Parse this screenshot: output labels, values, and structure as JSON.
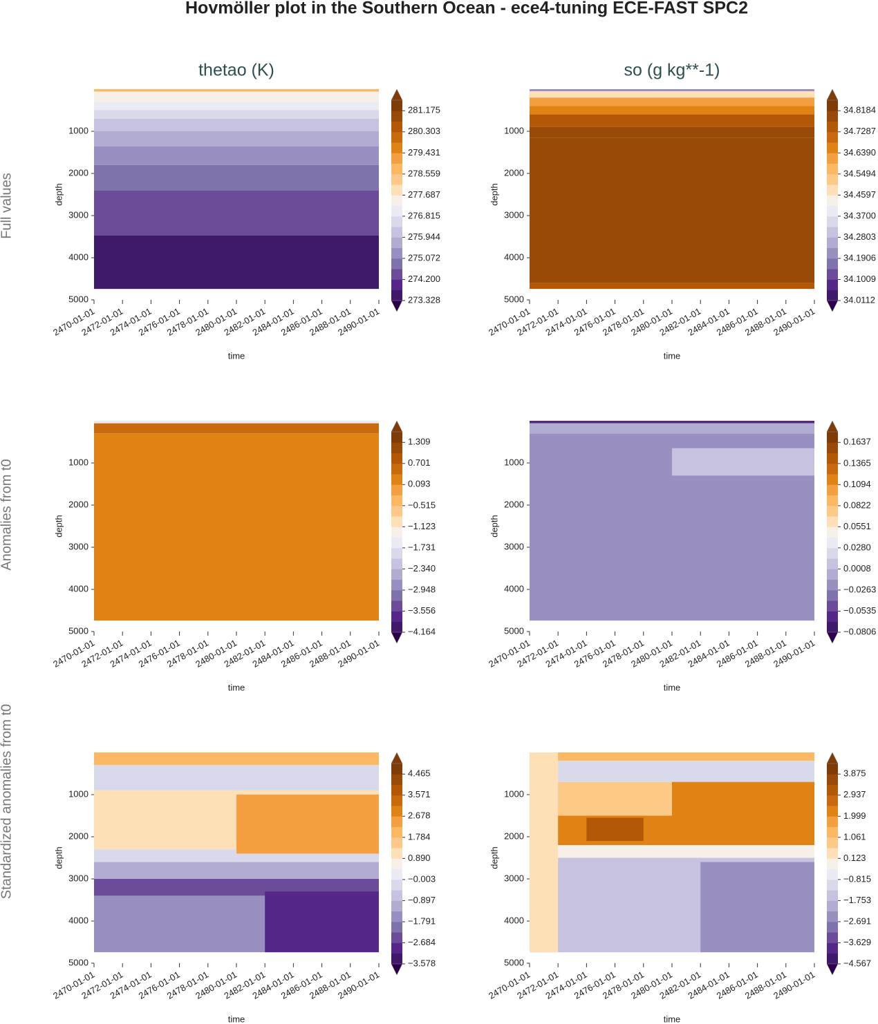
{
  "title": "Hovmöller plot in the Southern Ocean - ece4-tuning ECE-FAST SPC2",
  "row_labels": [
    "Full values",
    "Anomalies from t0",
    "Standardized anomalies from t0"
  ],
  "column_titles": [
    "thetao (K)",
    "so (g kg**-1)"
  ],
  "colormap": [
    "#2d004b",
    "#3f1a6b",
    "#542788",
    "#6a4c98",
    "#8073ac",
    "#998fc0",
    "#b2abd2",
    "#c6c2df",
    "#d8daeb",
    "#ebebf3",
    "#f7f0e8",
    "#fee0b6",
    "#fdc987",
    "#fdb863",
    "#f5a040",
    "#e08214",
    "#c86a0e",
    "#b35806",
    "#9a4a07",
    "#7f3b08"
  ],
  "chart_data": [
    {
      "type": "contour",
      "xlabel": "time",
      "ylabel": "depth",
      "xlim": [
        "2470-01-01",
        "2490-01-01"
      ],
      "xticks": [
        "2470-01-01",
        "2472-01-01",
        "2474-01-01",
        "2476-01-01",
        "2478-01-01",
        "2480-01-01",
        "2482-01-01",
        "2484-01-01",
        "2486-01-01",
        "2488-01-01",
        "2490-01-01"
      ],
      "ylim": [
        5000,
        0
      ],
      "yticks": [
        1000,
        2000,
        3000,
        4000,
        5000
      ],
      "cbar_ticks": [
        273.328,
        {
          "value": 274.2,
          "label": "274.200"
        },
        275.072,
        275.944,
        276.815,
        277.687,
        278.559,
        279.431,
        280.303,
        281.175
      ],
      "bands": [
        {
          "depth": [
            0,
            60
          ],
          "value": 278.8
        },
        {
          "depth": [
            60,
            300
          ],
          "value": 277.5
        },
        {
          "depth": [
            300,
            500
          ],
          "value": 277.0
        },
        {
          "depth": [
            500,
            700
          ],
          "value": 276.5
        },
        {
          "depth": [
            700,
            1000
          ],
          "value": 276.1
        },
        {
          "depth": [
            1000,
            1360
          ],
          "value": 275.7
        },
        {
          "depth": [
            1360,
            1800
          ],
          "value": 275.3
        },
        {
          "depth": [
            1800,
            2410
          ],
          "value": 274.8
        },
        {
          "depth": [
            2410,
            3475
          ],
          "value": 274.3
        },
        {
          "depth": [
            3475,
            4740
          ],
          "value": 273.5
        }
      ]
    },
    {
      "type": "contour",
      "xlabel": "time",
      "ylabel": "depth",
      "xlim": [
        "2470-01-01",
        "2490-01-01"
      ],
      "xticks": [
        "2470-01-01",
        "2472-01-01",
        "2474-01-01",
        "2476-01-01",
        "2478-01-01",
        "2480-01-01",
        "2482-01-01",
        "2484-01-01",
        "2486-01-01",
        "2488-01-01",
        "2490-01-01"
      ],
      "ylim": [
        5000,
        0
      ],
      "yticks": [
        1000,
        2000,
        3000,
        4000,
        5000
      ],
      "cbar_ticks": [
        34.0112,
        34.1009,
        34.1906,
        34.2803,
        {
          "value": 34.37,
          "label": "34.3700"
        },
        34.4597,
        34.5494,
        {
          "value": 34.639,
          "label": "34.6390"
        },
        34.7287,
        34.8184
      ],
      "bands": [
        {
          "depth": [
            0,
            50
          ],
          "value": 34.2
        },
        {
          "depth": [
            50,
            200
          ],
          "value": 34.48
        },
        {
          "depth": [
            200,
            400
          ],
          "value": 34.6
        },
        {
          "depth": [
            400,
            600
          ],
          "value": 34.68
        },
        {
          "depth": [
            600,
            900
          ],
          "value": 34.74
        },
        {
          "depth": [
            900,
            1150
          ],
          "value": 34.78
        },
        {
          "depth": [
            1150,
            4600
          ],
          "value": 34.81
        },
        {
          "depth": [
            4600,
            4740
          ],
          "value": 34.76
        }
      ]
    },
    {
      "type": "contour",
      "xlabel": "time",
      "ylabel": "depth",
      "xlim": [
        "2470-01-01",
        "2490-01-01"
      ],
      "xticks": [
        "2470-01-01",
        "2472-01-01",
        "2474-01-01",
        "2476-01-01",
        "2478-01-01",
        "2480-01-01",
        "2482-01-01",
        "2484-01-01",
        "2486-01-01",
        "2488-01-01",
        "2490-01-01"
      ],
      "ylim": [
        5000,
        0
      ],
      "yticks": [
        1000,
        2000,
        3000,
        4000,
        5000
      ],
      "cbar_ticks": [
        {
          "value": -4.164,
          "label": "−4.164"
        },
        {
          "value": -3.556,
          "label": "−3.556"
        },
        {
          "value": -2.948,
          "label": "−2.948"
        },
        {
          "value": -2.34,
          "label": "−2.340"
        },
        {
          "value": -1.731,
          "label": "−1.731"
        },
        {
          "value": -1.123,
          "label": "−1.123"
        },
        {
          "value": -0.515,
          "label": "−0.515"
        },
        0.093,
        0.701,
        1.309
      ],
      "bands": [
        {
          "depth": [
            0,
            60
          ],
          "value": -1.5
        },
        {
          "depth": [
            60,
            300
          ],
          "value": 0.5
        },
        {
          "depth": [
            300,
            4740
          ],
          "value": 0.3
        }
      ]
    },
    {
      "type": "contour",
      "xlabel": "time",
      "ylabel": "depth",
      "xlim": [
        "2470-01-01",
        "2490-01-01"
      ],
      "xticks": [
        "2470-01-01",
        "2472-01-01",
        "2474-01-01",
        "2476-01-01",
        "2478-01-01",
        "2480-01-01",
        "2482-01-01",
        "2484-01-01",
        "2486-01-01",
        "2488-01-01",
        "2490-01-01"
      ],
      "ylim": [
        5000,
        0
      ],
      "yticks": [
        1000,
        2000,
        3000,
        4000,
        5000
      ],
      "cbar_ticks": [
        {
          "value": -0.0806,
          "label": "−0.0806"
        },
        {
          "value": -0.0535,
          "label": "−0.0535"
        },
        {
          "value": -0.0263,
          "label": "−0.0263"
        },
        0.0008,
        {
          "value": 0.028,
          "label": "0.0280"
        },
        0.0551,
        0.0822,
        0.1094,
        0.1365,
        0.1637
      ],
      "bands": [
        {
          "depth": [
            0,
            60
          ],
          "value": -0.06
        },
        {
          "depth": [
            60,
            300
          ],
          "value": -0.005
        },
        {
          "depth": [
            300,
            4740
          ],
          "value": -0.02
        },
        {
          "depth": [
            650,
            1300
          ],
          "time": [
            "2480-01-01",
            "2490-01-01"
          ],
          "value": 0.01
        }
      ]
    },
    {
      "type": "contour",
      "xlabel": "time",
      "ylabel": "depth",
      "xlim": [
        "2470-01-01",
        "2490-01-01"
      ],
      "xticks": [
        "2470-01-01",
        "2472-01-01",
        "2474-01-01",
        "2476-01-01",
        "2478-01-01",
        "2480-01-01",
        "2482-01-01",
        "2484-01-01",
        "2486-01-01",
        "2488-01-01",
        "2490-01-01"
      ],
      "ylim": [
        5000,
        0
      ],
      "yticks": [
        1000,
        2000,
        3000,
        4000,
        5000
      ],
      "cbar_ticks": [
        {
          "value": -3.578,
          "label": "−3.578"
        },
        {
          "value": -2.684,
          "label": "−2.684"
        },
        {
          "value": -1.791,
          "label": "−1.791"
        },
        {
          "value": -0.897,
          "label": "−0.897"
        },
        {
          "value": -0.003,
          "label": "−0.003"
        },
        {
          "value": 0.89,
          "label": "0.890"
        },
        1.784,
        2.678,
        3.571,
        4.465
      ],
      "bands": [
        {
          "depth": [
            0,
            300
          ],
          "value": 2.0
        },
        {
          "depth": [
            300,
            900
          ],
          "value": -0.4
        },
        {
          "depth": [
            900,
            2300
          ],
          "value": 1.0
        },
        {
          "depth": [
            2300,
            2600
          ],
          "value": -0.2
        },
        {
          "depth": [
            2600,
            3000
          ],
          "value": -1.2
        },
        {
          "depth": [
            3000,
            3400
          ],
          "value": -2.5
        },
        {
          "depth": [
            3400,
            4740
          ],
          "value": -1.4
        },
        {
          "depth": [
            1000,
            2400
          ],
          "time": [
            "2480-01-01",
            "2490-01-01"
          ],
          "value": 2.4
        },
        {
          "depth": [
            3300,
            4740
          ],
          "time": [
            "2482-01-01",
            "2490-01-01"
          ],
          "value": -2.8
        }
      ]
    },
    {
      "type": "contour",
      "xlabel": "time",
      "ylabel": "depth",
      "xlim": [
        "2470-01-01",
        "2490-01-01"
      ],
      "xticks": [
        "2470-01-01",
        "2472-01-01",
        "2474-01-01",
        "2476-01-01",
        "2478-01-01",
        "2480-01-01",
        "2482-01-01",
        "2484-01-01",
        "2486-01-01",
        "2488-01-01",
        "2490-01-01"
      ],
      "ylim": [
        5000,
        0
      ],
      "yticks": [
        1000,
        2000,
        3000,
        4000,
        5000
      ],
      "cbar_ticks": [
        {
          "value": -4.567,
          "label": "−4.567"
        },
        {
          "value": -3.629,
          "label": "−3.629"
        },
        {
          "value": -2.691,
          "label": "−2.691"
        },
        {
          "value": -1.753,
          "label": "−1.753"
        },
        {
          "value": -0.815,
          "label": "−0.815"
        },
        0.123,
        1.061,
        1.999,
        2.937,
        3.875
      ],
      "bands": [
        {
          "depth": [
            0,
            200
          ],
          "value": 1.5
        },
        {
          "depth": [
            200,
            700
          ],
          "value": -1.2
        },
        {
          "depth": [
            700,
            1500
          ],
          "value": 0.8
        },
        {
          "depth": [
            1500,
            2200
          ],
          "value": 2.0
        },
        {
          "depth": [
            2200,
            2500
          ],
          "value": -0.3
        },
        {
          "depth": [
            2500,
            4740
          ],
          "value": -1.3
        },
        {
          "depth": [
            1550,
            2100
          ],
          "time": [
            "2474-01-01",
            "2478-01-01"
          ],
          "value": 3.3
        },
        {
          "depth": [
            700,
            2000
          ],
          "time": [
            "2480-01-01",
            "2490-01-01"
          ],
          "value": 2.4
        },
        {
          "depth": [
            2600,
            4740
          ],
          "time": [
            "2482-01-01",
            "2490-01-01"
          ],
          "value": -2.6
        },
        {
          "depth": [
            0,
            4740
          ],
          "time": [
            "2470-01-01",
            "2472-01-01"
          ],
          "value": 0.2
        }
      ]
    }
  ]
}
